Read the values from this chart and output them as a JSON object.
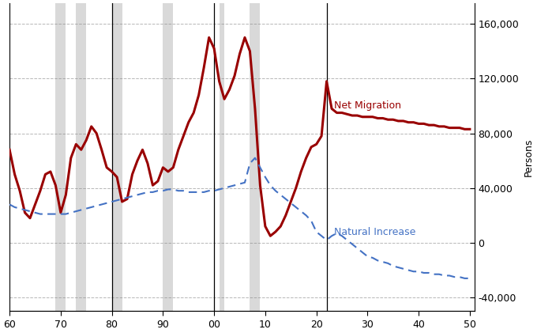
{
  "ylabel_right": "Persons",
  "ylim": [
    -50000,
    175000
  ],
  "yticks": [
    -40000,
    0,
    40000,
    80000,
    120000,
    160000
  ],
  "xlim": [
    1960,
    2051
  ],
  "xticks": [
    1960,
    1970,
    1980,
    1990,
    2000,
    2010,
    2020,
    2030,
    2040,
    2050
  ],
  "xticklabels": [
    "60",
    "70",
    "80",
    "90",
    "00",
    "10",
    "20",
    "30",
    "40",
    "50"
  ],
  "recession_bands": [
    [
      1969,
      1971
    ],
    [
      1973,
      1975
    ],
    [
      1980,
      1982
    ],
    [
      1990,
      1992
    ],
    [
      2001,
      2002
    ],
    [
      2007,
      2009
    ]
  ],
  "vertical_lines": [
    1980,
    2000,
    2022
  ],
  "net_migration_color": "#990000",
  "natural_increase_color": "#4472C4",
  "background_color": "#FFFFFF",
  "net_migration_label": "Net Migration",
  "natural_increase_label": "Natural Increase",
  "net_migration_x": [
    1960,
    1961,
    1962,
    1963,
    1964,
    1965,
    1966,
    1967,
    1968,
    1969,
    1970,
    1971,
    1972,
    1973,
    1974,
    1975,
    1976,
    1977,
    1978,
    1979,
    1980,
    1981,
    1982,
    1983,
    1984,
    1985,
    1986,
    1987,
    1988,
    1989,
    1990,
    1991,
    1992,
    1993,
    1994,
    1995,
    1996,
    1997,
    1998,
    1999,
    2000,
    2001,
    2002,
    2003,
    2004,
    2005,
    2006,
    2007,
    2008,
    2009,
    2010,
    2011,
    2012,
    2013,
    2014,
    2015,
    2016,
    2017,
    2018,
    2019,
    2020,
    2021,
    2022,
    2023,
    2024,
    2025,
    2026,
    2027,
    2028,
    2029,
    2030,
    2031,
    2032,
    2033,
    2034,
    2035,
    2036,
    2037,
    2038,
    2039,
    2040,
    2041,
    2042,
    2043,
    2044,
    2045,
    2046,
    2047,
    2048,
    2049,
    2050
  ],
  "net_migration_y": [
    68000,
    50000,
    38000,
    22000,
    18000,
    28000,
    38000,
    50000,
    52000,
    42000,
    22000,
    35000,
    62000,
    72000,
    68000,
    75000,
    85000,
    80000,
    68000,
    55000,
    52000,
    48000,
    30000,
    32000,
    50000,
    60000,
    68000,
    58000,
    42000,
    45000,
    55000,
    52000,
    55000,
    68000,
    78000,
    88000,
    95000,
    108000,
    128000,
    150000,
    142000,
    118000,
    105000,
    112000,
    122000,
    138000,
    150000,
    140000,
    98000,
    42000,
    12000,
    5000,
    8000,
    12000,
    20000,
    30000,
    40000,
    52000,
    62000,
    70000,
    72000,
    78000,
    118000,
    98000,
    95000,
    95000,
    94000,
    93000,
    93000,
    92000,
    92000,
    92000,
    91000,
    91000,
    90000,
    90000,
    89000,
    89000,
    88000,
    88000,
    87000,
    87000,
    86000,
    86000,
    85000,
    85000,
    84000,
    84000,
    84000,
    83000,
    83000
  ],
  "natural_increase_x": [
    1960,
    1961,
    1962,
    1963,
    1964,
    1965,
    1966,
    1967,
    1968,
    1969,
    1970,
    1971,
    1972,
    1973,
    1974,
    1975,
    1976,
    1977,
    1978,
    1979,
    1980,
    1981,
    1982,
    1983,
    1984,
    1985,
    1986,
    1987,
    1988,
    1989,
    1990,
    1991,
    1992,
    1993,
    1994,
    1995,
    1996,
    1997,
    1998,
    1999,
    2000,
    2001,
    2002,
    2003,
    2004,
    2005,
    2006,
    2007,
    2008,
    2009,
    2010,
    2011,
    2012,
    2013,
    2014,
    2015,
    2016,
    2017,
    2018,
    2019,
    2020,
    2021,
    2022,
    2023,
    2024,
    2025,
    2026,
    2027,
    2028,
    2029,
    2030,
    2031,
    2032,
    2033,
    2034,
    2035,
    2036,
    2037,
    2038,
    2039,
    2040,
    2041,
    2042,
    2043,
    2044,
    2045,
    2046,
    2047,
    2048,
    2049,
    2050
  ],
  "natural_increase_y": [
    28000,
    26000,
    25000,
    24000,
    23000,
    22000,
    21000,
    21000,
    21000,
    21000,
    21000,
    21000,
    22000,
    23000,
    24000,
    25000,
    26000,
    27000,
    28000,
    29000,
    30000,
    31000,
    32000,
    33000,
    34000,
    35000,
    36000,
    37000,
    37000,
    38000,
    38000,
    39000,
    39000,
    38000,
    38000,
    37000,
    37000,
    37000,
    37000,
    38000,
    38000,
    39000,
    40000,
    41000,
    42000,
    43000,
    44000,
    58000,
    62000,
    55000,
    48000,
    42000,
    38000,
    35000,
    32000,
    29000,
    26000,
    23000,
    20000,
    16000,
    8000,
    5000,
    2000,
    5000,
    7000,
    5000,
    2000,
    -1000,
    -4000,
    -7000,
    -10000,
    -11000,
    -13000,
    -14000,
    -15000,
    -17000,
    -18000,
    -19000,
    -20000,
    -21000,
    -21000,
    -22000,
    -22000,
    -23000,
    -23000,
    -24000,
    -24000,
    -25000,
    -25000,
    -26000,
    -26000
  ]
}
